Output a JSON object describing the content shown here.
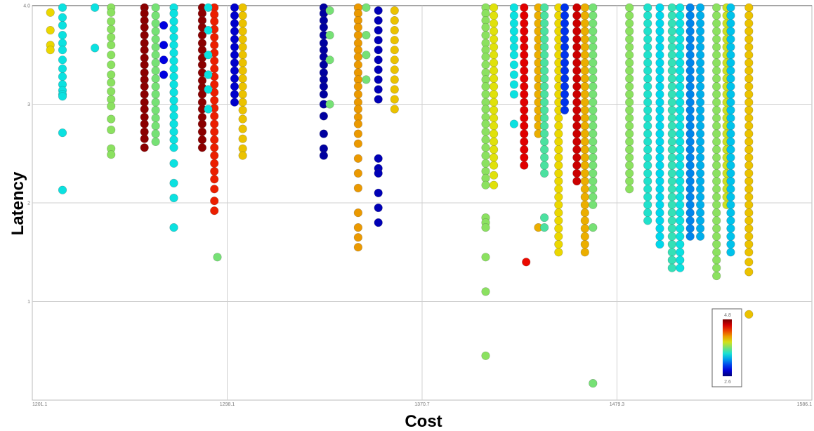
{
  "chart_data": {
    "type": "scatter",
    "title": "",
    "xlabel": "Cost",
    "ylabel": "Latency",
    "grid": true,
    "xlim": [
      1201.1,
      1586.1
    ],
    "ylim": [
      0,
      4.0
    ],
    "x_tick_labels": [
      "1201.1",
      "1298.1",
      "1370.7",
      "1479.3",
      "1586.1"
    ],
    "y_tick_labels": [
      "",
      "1",
      "2",
      "3",
      "4.0"
    ],
    "colorbar": {
      "min": 2.6,
      "max": 4.8,
      "min_label": "2.6",
      "max_label": "4.8",
      "colormap": "jet",
      "placement": "bottom-right"
    },
    "columns": [
      {
        "x": 1210.0,
        "ys": [
          3.93,
          3.75,
          3.6,
          3.55
        ],
        "c": 4.0
      },
      {
        "x": 1216.0,
        "ys": [
          3.98,
          3.88,
          3.8,
          3.7,
          3.62,
          3.55,
          3.45,
          3.36,
          3.28,
          3.2,
          3.14,
          3.1,
          3.08,
          2.71,
          2.13
        ],
        "c": 3.45
      },
      {
        "x": 1232.0,
        "ys": [
          3.98,
          3.57
        ],
        "c": 3.45
      },
      {
        "x": 1240.0,
        "ys": [
          3.98,
          3.93,
          3.84,
          3.76,
          3.68,
          3.6,
          3.5,
          3.4,
          3.3,
          3.22,
          3.13,
          3.05,
          2.98,
          2.85,
          2.74,
          2.55,
          2.49
        ],
        "c": 3.75
      },
      {
        "x": 1256.5,
        "ys": [
          3.98,
          3.92,
          3.85,
          3.78,
          3.7,
          3.62,
          3.55,
          3.47,
          3.4,
          3.32,
          3.25,
          3.18,
          3.1,
          3.02,
          2.95,
          2.87,
          2.8,
          2.72,
          2.65,
          2.56
        ],
        "c": 4.75
      },
      {
        "x": 1262.0,
        "ys": [
          3.98,
          3.9,
          3.82,
          3.74,
          3.66,
          3.58,
          3.5,
          3.42,
          3.34,
          3.26,
          3.18,
          3.1,
          3.02,
          2.94,
          2.86,
          2.78,
          2.7,
          2.62
        ],
        "c": 3.7
      },
      {
        "x": 1266.0,
        "ys": [
          3.8,
          3.6,
          3.45,
          3.3
        ],
        "c": 2.85
      },
      {
        "x": 1271.0,
        "ys": [
          3.98,
          3.92,
          3.84,
          3.76,
          3.68,
          3.6,
          3.52,
          3.44,
          3.36,
          3.28,
          3.2,
          3.12,
          3.04,
          2.96,
          2.88,
          2.8,
          2.72,
          2.64,
          2.56,
          2.4,
          2.2,
          2.05,
          1.75
        ],
        "c": 3.45
      },
      {
        "x": 1285.0,
        "ys": [
          3.98,
          3.92,
          3.85,
          3.78,
          3.7,
          3.62,
          3.55,
          3.47,
          3.4,
          3.32,
          3.24,
          3.17,
          3.1,
          3.02,
          2.95,
          2.87,
          2.8,
          2.72,
          2.64,
          2.56
        ],
        "c": 4.75
      },
      {
        "x": 1291.0,
        "ys": [
          3.98,
          3.91,
          3.84,
          3.76,
          3.68,
          3.6,
          3.52,
          3.44,
          3.36,
          3.28,
          3.2,
          3.12,
          3.04,
          2.96,
          2.88,
          2.8,
          2.72,
          2.64,
          2.56,
          2.48,
          2.4,
          2.32,
          2.24,
          2.14,
          2.02,
          1.92
        ],
        "c": 4.45
      },
      {
        "x": 1288.0,
        "ys": [
          3.98,
          3.75,
          3.5,
          3.3,
          3.15,
          2.95
        ],
        "c": 3.45
      },
      {
        "x": 1292.5,
        "ys": [
          1.45
        ],
        "c": 3.7
      },
      {
        "x": 1301.0,
        "ys": [
          3.98,
          3.9,
          3.82,
          3.74,
          3.66,
          3.58,
          3.5,
          3.42,
          3.34,
          3.26,
          3.18,
          3.1,
          3.02
        ],
        "c": 2.8
      },
      {
        "x": 1305.0,
        "ys": [
          3.98,
          3.9,
          3.82,
          3.74,
          3.66,
          3.58,
          3.5,
          3.42,
          3.34,
          3.26,
          3.18,
          3.1,
          3.02,
          2.94,
          2.85,
          2.75,
          2.65,
          2.55,
          2.48
        ],
        "c": 4.05
      },
      {
        "x": 1345.0,
        "ys": [
          3.98,
          3.92,
          3.85,
          3.78,
          3.7,
          3.62,
          3.55,
          3.48,
          3.4,
          3.32,
          3.25,
          3.18,
          3.1,
          3.0,
          2.88,
          2.7,
          2.55,
          2.48
        ],
        "c": 2.7
      },
      {
        "x": 1348.0,
        "ys": [
          3.95,
          3.7,
          3.45,
          3.0
        ],
        "c": 3.7
      },
      {
        "x": 1362.0,
        "ys": [
          3.98,
          3.92,
          3.85,
          3.78,
          3.7,
          3.62,
          3.55,
          3.48,
          3.4,
          3.32,
          3.25,
          3.18,
          3.1,
          3.02,
          2.95,
          2.87,
          2.8,
          2.7,
          2.6,
          2.45,
          2.3,
          2.15,
          1.9,
          1.75,
          1.65,
          1.55
        ],
        "c": 4.15
      },
      {
        "x": 1366.0,
        "ys": [
          3.98,
          3.7,
          3.5,
          3.25
        ],
        "c": 3.7
      },
      {
        "x": 1372.0,
        "ys": [
          3.95,
          3.85,
          3.75,
          3.65,
          3.55,
          3.45,
          3.35,
          3.25,
          3.15,
          3.05,
          2.45,
          2.35,
          2.3,
          2.1,
          1.95,
          1.8
        ],
        "c": 2.75
      },
      {
        "x": 1380.0,
        "ys": [
          3.95,
          3.85,
          3.75,
          3.65,
          3.55,
          3.45,
          3.35,
          3.25,
          3.15,
          3.05,
          2.95
        ],
        "c": 4.05
      },
      {
        "x": 1425.0,
        "ys": [
          3.98,
          3.92,
          3.85,
          3.78,
          3.7,
          3.62,
          3.55,
          3.48,
          3.4,
          3.32,
          3.25,
          3.18,
          3.1,
          3.02,
          2.95,
          2.87,
          2.8,
          2.72,
          2.64,
          2.56,
          2.48,
          2.4,
          2.32,
          2.25,
          2.18,
          1.85,
          1.8,
          1.75,
          1.45,
          1.1,
          0.45
        ],
        "c": 3.75
      },
      {
        "x": 1429.0,
        "ys": [
          3.98,
          3.9,
          3.82,
          3.74,
          3.66,
          3.58,
          3.5,
          3.42,
          3.34,
          3.26,
          3.18,
          3.1,
          3.02,
          2.94,
          2.86,
          2.78,
          2.7,
          2.62,
          2.54,
          2.46,
          2.38,
          2.28,
          2.18
        ],
        "c": 3.95
      },
      {
        "x": 1439.0,
        "ys": [
          3.98,
          3.9,
          3.82,
          3.74,
          3.66,
          3.58,
          3.5,
          3.4,
          3.3,
          3.2,
          3.1,
          2.8
        ],
        "c": 3.45
      },
      {
        "x": 1444.0,
        "ys": [
          3.98,
          3.9,
          3.82,
          3.74,
          3.66,
          3.58,
          3.5,
          3.42,
          3.34,
          3.26,
          3.18,
          3.1,
          3.02,
          2.94,
          2.86,
          2.78,
          2.7,
          2.62,
          2.54,
          2.46,
          2.38
        ],
        "c": 4.55
      },
      {
        "x": 1445.0,
        "ys": [
          1.4
        ],
        "c": 4.5
      },
      {
        "x": 1451.0,
        "ys": [
          3.98,
          3.9,
          3.82,
          3.74,
          3.66,
          3.58,
          3.5,
          3.42,
          3.34,
          3.26,
          3.18,
          3.1,
          3.02,
          2.94,
          2.86,
          2.78,
          2.7,
          1.75
        ],
        "c": 4.1
      },
      {
        "x": 1454.0,
        "ys": [
          3.98,
          3.9,
          3.82,
          3.74,
          3.66,
          3.58,
          3.5,
          3.42,
          3.34,
          3.26,
          3.18,
          3.1,
          3.02,
          2.94,
          2.86,
          2.78,
          2.7,
          2.62,
          2.54,
          2.46,
          2.38,
          2.3,
          1.85,
          1.75
        ],
        "c": 3.6
      },
      {
        "x": 1461.0,
        "ys": [
          3.98,
          3.9,
          3.82,
          3.74,
          3.66,
          3.58,
          3.5,
          3.42,
          3.34,
          3.26,
          3.18,
          3.1,
          3.02,
          2.94,
          2.86,
          2.78,
          2.7,
          2.62,
          2.54,
          2.46,
          2.38,
          2.3,
          2.22,
          2.14,
          2.06,
          1.98,
          1.9,
          1.82,
          1.74,
          1.66,
          1.58,
          1.5
        ],
        "c": 4.0
      },
      {
        "x": 1464.0,
        "ys": [
          3.98,
          3.9,
          3.82,
          3.74,
          3.66,
          3.58,
          3.5,
          3.42,
          3.34,
          3.26,
          3.18,
          3.1,
          3.02,
          2.94
        ],
        "c": 3.0
      },
      {
        "x": 1470.0,
        "ys": [
          3.98,
          3.9,
          3.82,
          3.74,
          3.66,
          3.58,
          3.5,
          3.42,
          3.34,
          3.26,
          3.18,
          3.1,
          3.02,
          2.94,
          2.86,
          2.78,
          2.7,
          2.62,
          2.54,
          2.46,
          2.38,
          2.3,
          2.22
        ],
        "c": 4.6
      },
      {
        "x": 1474.0,
        "ys": [
          3.98,
          3.9,
          3.82,
          3.74,
          3.66,
          3.58,
          3.5,
          3.42,
          3.34,
          3.26,
          3.18,
          3.1,
          3.02,
          2.94,
          2.86,
          2.78,
          2.7,
          2.62,
          2.54,
          2.46,
          2.38,
          2.3,
          2.22,
          2.14,
          2.06,
          1.98,
          1.9,
          1.82,
          1.74,
          1.66,
          1.58,
          1.5
        ],
        "c": 4.1
      },
      {
        "x": 1478.0,
        "ys": [
          3.98,
          3.9,
          3.82,
          3.74,
          3.66,
          3.58,
          3.5,
          3.42,
          3.34,
          3.26,
          3.18,
          3.1,
          3.02,
          2.94,
          2.86,
          2.78,
          2.7,
          2.62,
          2.54,
          2.46,
          2.38,
          2.3,
          2.22,
          2.14,
          2.06,
          1.98,
          1.75,
          0.17
        ],
        "c": 3.7
      },
      {
        "x": 1496.0,
        "ys": [
          3.98,
          3.9,
          3.82,
          3.74,
          3.66,
          3.58,
          3.5,
          3.42,
          3.34,
          3.26,
          3.18,
          3.1,
          3.02,
          2.94,
          2.86,
          2.78,
          2.7,
          2.62,
          2.54,
          2.46,
          2.38,
          2.3,
          2.22,
          2.14
        ],
        "c": 3.75
      },
      {
        "x": 1505.0,
        "ys": [
          3.98,
          3.9,
          3.82,
          3.74,
          3.66,
          3.58,
          3.5,
          3.42,
          3.34,
          3.26,
          3.18,
          3.1,
          3.02,
          2.94,
          2.86,
          2.78,
          2.7,
          2.62,
          2.54,
          2.46,
          2.38,
          2.3,
          2.22,
          2.14,
          2.06,
          1.98,
          1.9,
          1.82
        ],
        "c": 3.5
      },
      {
        "x": 1511.0,
        "ys": [
          3.98,
          3.9,
          3.82,
          3.74,
          3.66,
          3.58,
          3.5,
          3.42,
          3.34,
          3.26,
          3.18,
          3.1,
          3.02,
          2.94,
          2.86,
          2.78,
          2.7,
          2.62,
          2.54,
          2.46,
          2.38,
          2.3,
          2.22,
          2.14,
          2.06,
          1.98,
          1.9,
          1.82,
          1.74,
          1.66,
          1.58
        ],
        "c": 3.4
      },
      {
        "x": 1517.0,
        "ys": [
          3.98,
          3.9,
          3.82,
          3.74,
          3.66,
          3.58,
          3.5,
          3.42,
          3.34,
          3.26,
          3.18,
          3.1,
          3.02,
          2.94,
          2.86,
          2.78,
          2.7,
          2.62,
          2.54,
          2.46,
          2.38,
          2.3,
          2.22,
          2.14,
          2.06,
          1.98,
          1.9,
          1.82,
          1.74,
          1.66,
          1.58,
          1.5,
          1.42,
          1.34
        ],
        "c": 3.55
      },
      {
        "x": 1521.0,
        "ys": [
          3.98,
          3.9,
          3.82,
          3.74,
          3.66,
          3.58,
          3.5,
          3.42,
          3.34,
          3.26,
          3.18,
          3.1,
          3.02,
          2.94,
          2.86,
          2.78,
          2.7,
          2.62,
          2.54,
          2.46,
          2.38,
          2.3,
          2.22,
          2.14,
          2.06,
          1.98,
          1.9,
          1.82,
          1.74,
          1.66,
          1.58,
          1.5,
          1.42,
          1.34
        ],
        "c": 3.45
      },
      {
        "x": 1526.0,
        "ys": [
          3.98,
          3.9,
          3.82,
          3.74,
          3.66,
          3.58,
          3.5,
          3.42,
          3.34,
          3.26,
          3.18,
          3.1,
          3.02,
          2.94,
          2.86,
          2.78,
          2.7,
          2.62,
          2.54,
          2.46,
          2.38,
          2.3,
          2.22,
          2.14,
          2.06,
          1.98,
          1.9,
          1.82,
          1.74,
          1.66
        ],
        "c": 3.2
      },
      {
        "x": 1531.0,
        "ys": [
          3.98,
          3.9,
          3.82,
          3.74,
          3.66,
          3.58,
          3.5,
          3.42,
          3.34,
          3.26,
          3.18,
          3.1,
          3.02,
          2.94,
          2.86,
          2.78,
          2.7,
          2.62,
          2.54,
          2.46,
          2.38,
          2.3,
          2.22,
          2.14,
          2.06,
          1.98,
          1.9,
          1.82,
          1.74,
          1.66
        ],
        "c": 3.3
      },
      {
        "x": 1539.0,
        "ys": [
          3.98,
          3.9,
          3.82,
          3.74,
          3.66,
          3.58,
          3.5,
          3.42,
          3.34,
          3.26,
          3.18,
          3.1,
          3.02,
          2.94,
          2.86,
          2.78,
          2.7,
          2.62,
          2.54,
          2.46,
          2.38,
          2.3,
          2.22,
          2.14,
          2.06,
          1.98,
          1.9,
          1.82,
          1.74,
          1.66,
          1.58,
          1.5,
          1.42,
          1.34,
          1.26
        ],
        "c": 3.75
      },
      {
        "x": 1544.0,
        "ys": [
          3.98,
          3.9,
          3.82,
          3.74,
          3.66,
          3.58,
          3.5,
          3.42,
          3.34,
          3.26,
          3.18,
          3.1,
          3.02,
          2.94,
          2.86,
          2.78,
          2.7,
          2.62,
          2.54,
          2.46,
          2.38,
          2.3,
          2.22,
          2.14,
          2.06,
          1.98
        ],
        "c": 3.9
      },
      {
        "x": 1546.0,
        "ys": [
          3.98,
          3.9,
          3.82,
          3.74,
          3.66,
          3.58,
          3.5,
          3.42,
          3.34,
          3.26,
          3.18,
          3.1,
          3.02,
          2.94,
          2.86,
          2.78,
          2.7,
          2.62,
          2.54,
          2.46,
          2.38,
          2.3,
          2.22,
          2.14,
          2.06,
          1.98,
          1.9,
          1.82,
          1.74,
          1.66,
          1.58,
          1.5
        ],
        "c": 3.35
      },
      {
        "x": 1555.0,
        "ys": [
          3.98,
          3.9,
          3.82,
          3.74,
          3.66,
          3.58,
          3.5,
          3.42,
          3.34,
          3.26,
          3.18,
          3.1,
          3.02,
          2.94,
          2.86,
          2.78,
          2.7,
          2.62,
          2.54,
          2.46,
          2.38,
          2.3,
          2.22,
          2.14,
          2.06,
          1.98,
          1.9,
          1.82,
          1.74,
          1.66,
          1.58,
          1.5,
          1.4,
          1.3,
          0.87
        ],
        "c": 4.05
      }
    ]
  }
}
